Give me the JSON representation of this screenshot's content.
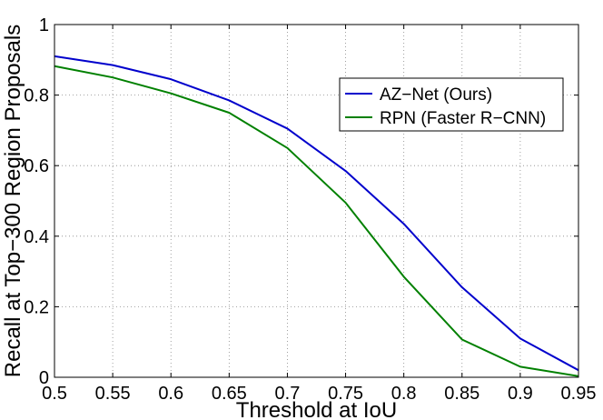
{
  "chart_data": {
    "type": "line",
    "xlabel": "Threshold at IoU",
    "ylabel": "Recall at Top−300 Region Proposals",
    "xlim": [
      0.5,
      0.95
    ],
    "ylim": [
      0,
      1
    ],
    "grid": true,
    "legend_position": "top-right",
    "x": [
      0.5,
      0.55,
      0.6,
      0.65,
      0.7,
      0.75,
      0.8,
      0.85,
      0.9,
      0.95
    ],
    "x_ticks": [
      "0.5",
      "0.55",
      "0.6",
      "0.65",
      "0.7",
      "0.75",
      "0.8",
      "0.85",
      "0.9",
      "0.95"
    ],
    "y_ticks": [
      0,
      0.2,
      0.4,
      0.6,
      0.8,
      1
    ],
    "y_tick_labels": [
      "0",
      "0.2",
      "0.4",
      "0.6",
      "0.8",
      "1"
    ],
    "series": [
      {
        "name": "AZ−Net (Ours)",
        "color": "#0000cc",
        "values": [
          0.91,
          0.885,
          0.845,
          0.785,
          0.705,
          0.585,
          0.435,
          0.255,
          0.11,
          0.02
        ]
      },
      {
        "name": "RPN (Faster R−CNN)",
        "color": "#008000",
        "values": [
          0.882,
          0.85,
          0.805,
          0.75,
          0.65,
          0.495,
          0.285,
          0.107,
          0.03,
          0.003
        ]
      }
    ]
  }
}
